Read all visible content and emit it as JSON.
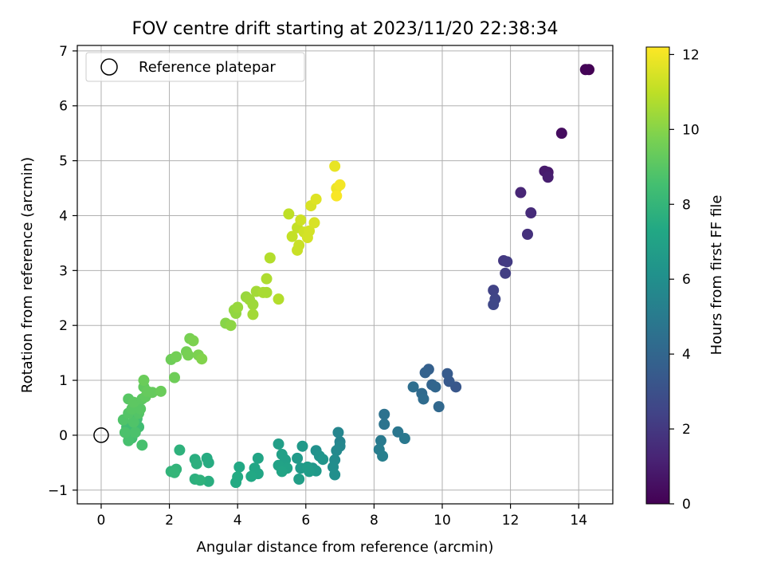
{
  "chart_data": {
    "type": "scatter",
    "title": "FOV centre drift starting at 2023/11/20 22:38:34",
    "xlabel": "Angular distance from reference (arcmin)",
    "ylabel": "Rotation from reference (arcmin)",
    "xlim": [
      -0.7,
      15.0
    ],
    "ylim": [
      -1.25,
      7.1
    ],
    "xticks": [
      0,
      2,
      4,
      6,
      8,
      10,
      12,
      14
    ],
    "yticks": [
      -1,
      0,
      1,
      2,
      3,
      4,
      5,
      6,
      7
    ],
    "grid": true,
    "legend": {
      "position": "top-left",
      "entries": [
        "Reference platepar"
      ]
    },
    "reference_point": {
      "x": 0,
      "y": 0
    },
    "colorbar": {
      "label": "Hours from first FF file",
      "range": [
        0,
        12.2
      ],
      "ticks": [
        0,
        2,
        4,
        6,
        8,
        10,
        12
      ],
      "colormap": "viridis"
    },
    "points": [
      {
        "x": 14.3,
        "y": 6.66,
        "c": 0.0
      },
      {
        "x": 14.2,
        "y": 6.66,
        "c": 0.1
      },
      {
        "x": 13.5,
        "y": 5.5,
        "c": 0.4
      },
      {
        "x": 13.1,
        "y": 4.79,
        "c": 0.8
      },
      {
        "x": 13.0,
        "y": 4.81,
        "c": 0.9
      },
      {
        "x": 13.1,
        "y": 4.7,
        "c": 1.0
      },
      {
        "x": 12.3,
        "y": 4.42,
        "c": 1.3
      },
      {
        "x": 12.6,
        "y": 4.05,
        "c": 1.5
      },
      {
        "x": 12.5,
        "y": 3.66,
        "c": 1.7
      },
      {
        "x": 11.8,
        "y": 3.18,
        "c": 2.0
      },
      {
        "x": 11.9,
        "y": 3.16,
        "c": 2.1
      },
      {
        "x": 11.85,
        "y": 2.95,
        "c": 2.2
      },
      {
        "x": 11.5,
        "y": 2.64,
        "c": 2.4
      },
      {
        "x": 11.55,
        "y": 2.48,
        "c": 2.5
      },
      {
        "x": 11.5,
        "y": 2.38,
        "c": 2.6
      },
      {
        "x": 10.4,
        "y": 0.88,
        "c": 3.3
      },
      {
        "x": 10.2,
        "y": 0.98,
        "c": 3.4
      },
      {
        "x": 10.15,
        "y": 1.12,
        "c": 3.5
      },
      {
        "x": 9.6,
        "y": 1.2,
        "c": 3.7
      },
      {
        "x": 9.5,
        "y": 1.14,
        "c": 3.8
      },
      {
        "x": 9.7,
        "y": 0.92,
        "c": 3.9
      },
      {
        "x": 9.8,
        "y": 0.88,
        "c": 4.0
      },
      {
        "x": 9.9,
        "y": 0.52,
        "c": 4.1
      },
      {
        "x": 9.4,
        "y": 0.76,
        "c": 4.2
      },
      {
        "x": 9.45,
        "y": 0.66,
        "c": 4.3
      },
      {
        "x": 9.15,
        "y": 0.88,
        "c": 4.4
      },
      {
        "x": 8.3,
        "y": 0.38,
        "c": 4.6
      },
      {
        "x": 8.3,
        "y": 0.2,
        "c": 4.7
      },
      {
        "x": 8.7,
        "y": 0.06,
        "c": 4.8
      },
      {
        "x": 8.9,
        "y": -0.06,
        "c": 4.9
      },
      {
        "x": 8.2,
        "y": -0.1,
        "c": 5.0
      },
      {
        "x": 8.15,
        "y": -0.26,
        "c": 5.1
      },
      {
        "x": 8.25,
        "y": -0.38,
        "c": 5.2
      },
      {
        "x": 7.0,
        "y": -0.12,
        "c": 5.4
      },
      {
        "x": 6.95,
        "y": 0.05,
        "c": 5.5
      },
      {
        "x": 7.0,
        "y": -0.2,
        "c": 5.6
      },
      {
        "x": 6.9,
        "y": -0.28,
        "c": 5.7
      },
      {
        "x": 6.85,
        "y": -0.45,
        "c": 5.8
      },
      {
        "x": 6.8,
        "y": -0.58,
        "c": 5.9
      },
      {
        "x": 6.85,
        "y": -0.72,
        "c": 6.0
      },
      {
        "x": 6.3,
        "y": -0.28,
        "c": 6.1
      },
      {
        "x": 6.4,
        "y": -0.38,
        "c": 6.2
      },
      {
        "x": 6.5,
        "y": -0.44,
        "c": 6.3
      },
      {
        "x": 6.2,
        "y": -0.6,
        "c": 6.4
      },
      {
        "x": 6.3,
        "y": -0.65,
        "c": 6.5
      },
      {
        "x": 5.9,
        "y": -0.2,
        "c": 6.5
      },
      {
        "x": 5.75,
        "y": -0.42,
        "c": 6.6
      },
      {
        "x": 5.85,
        "y": -0.6,
        "c": 6.6
      },
      {
        "x": 6.05,
        "y": -0.58,
        "c": 6.7
      },
      {
        "x": 6.1,
        "y": -0.66,
        "c": 6.7
      },
      {
        "x": 5.8,
        "y": -0.8,
        "c": 6.8
      },
      {
        "x": 5.2,
        "y": -0.16,
        "c": 6.8
      },
      {
        "x": 5.3,
        "y": -0.35,
        "c": 6.9
      },
      {
        "x": 5.4,
        "y": -0.45,
        "c": 6.9
      },
      {
        "x": 5.2,
        "y": -0.55,
        "c": 7.0
      },
      {
        "x": 5.45,
        "y": -0.6,
        "c": 7.0
      },
      {
        "x": 5.3,
        "y": -0.66,
        "c": 7.1
      },
      {
        "x": 4.6,
        "y": -0.42,
        "c": 7.1
      },
      {
        "x": 4.5,
        "y": -0.6,
        "c": 7.2
      },
      {
        "x": 4.6,
        "y": -0.7,
        "c": 7.2
      },
      {
        "x": 4.4,
        "y": -0.75,
        "c": 7.3
      },
      {
        "x": 4.05,
        "y": -0.58,
        "c": 7.3
      },
      {
        "x": 4.0,
        "y": -0.76,
        "c": 7.4
      },
      {
        "x": 3.95,
        "y": -0.86,
        "c": 7.4
      },
      {
        "x": 3.1,
        "y": -0.42,
        "c": 7.5
      },
      {
        "x": 3.15,
        "y": -0.5,
        "c": 7.5
      },
      {
        "x": 3.15,
        "y": -0.84,
        "c": 7.6
      },
      {
        "x": 2.75,
        "y": -0.44,
        "c": 7.6
      },
      {
        "x": 2.8,
        "y": -0.52,
        "c": 7.7
      },
      {
        "x": 2.75,
        "y": -0.8,
        "c": 7.7
      },
      {
        "x": 2.9,
        "y": -0.82,
        "c": 7.8
      },
      {
        "x": 2.3,
        "y": -0.27,
        "c": 7.8
      },
      {
        "x": 2.2,
        "y": -0.62,
        "c": 7.9
      },
      {
        "x": 2.05,
        "y": -0.66,
        "c": 7.9
      },
      {
        "x": 2.15,
        "y": -0.68,
        "c": 8.0
      },
      {
        "x": 0.85,
        "y": 0.0,
        "c": 8.2
      },
      {
        "x": 0.95,
        "y": 0.1,
        "c": 8.3
      },
      {
        "x": 1.1,
        "y": 0.15,
        "c": 8.4
      },
      {
        "x": 0.75,
        "y": 0.15,
        "c": 8.4
      },
      {
        "x": 1.05,
        "y": 0.3,
        "c": 8.5
      },
      {
        "x": 0.9,
        "y": -0.05,
        "c": 8.5
      },
      {
        "x": 1.2,
        "y": -0.18,
        "c": 8.6
      },
      {
        "x": 0.8,
        "y": -0.1,
        "c": 8.6
      },
      {
        "x": 1.0,
        "y": 0.05,
        "c": 8.7
      },
      {
        "x": 0.7,
        "y": 0.05,
        "c": 8.7
      },
      {
        "x": 0.65,
        "y": 0.28,
        "c": 8.8
      },
      {
        "x": 0.95,
        "y": 0.24,
        "c": 8.8
      },
      {
        "x": 0.8,
        "y": 0.4,
        "c": 8.9
      },
      {
        "x": 1.1,
        "y": 0.4,
        "c": 8.9
      },
      {
        "x": 0.9,
        "y": 0.48,
        "c": 9.0
      },
      {
        "x": 1.15,
        "y": 0.48,
        "c": 9.0
      },
      {
        "x": 0.8,
        "y": 0.66,
        "c": 9.0
      },
      {
        "x": 0.95,
        "y": 0.6,
        "c": 9.1
      },
      {
        "x": 1.2,
        "y": 0.66,
        "c": 9.1
      },
      {
        "x": 1.3,
        "y": 0.7,
        "c": 9.2
      },
      {
        "x": 1.25,
        "y": 0.88,
        "c": 9.2
      },
      {
        "x": 1.35,
        "y": 0.8,
        "c": 9.3
      },
      {
        "x": 1.5,
        "y": 0.78,
        "c": 9.3
      },
      {
        "x": 1.75,
        "y": 0.8,
        "c": 9.4
      },
      {
        "x": 1.25,
        "y": 1.0,
        "c": 9.4
      },
      {
        "x": 2.15,
        "y": 1.05,
        "c": 9.5
      },
      {
        "x": 2.05,
        "y": 1.38,
        "c": 9.5
      },
      {
        "x": 2.2,
        "y": 1.43,
        "c": 9.6
      },
      {
        "x": 2.5,
        "y": 1.52,
        "c": 9.6
      },
      {
        "x": 2.55,
        "y": 1.46,
        "c": 9.7
      },
      {
        "x": 2.6,
        "y": 1.76,
        "c": 9.7
      },
      {
        "x": 2.7,
        "y": 1.72,
        "c": 9.8
      },
      {
        "x": 2.85,
        "y": 1.46,
        "c": 9.8
      },
      {
        "x": 2.95,
        "y": 1.39,
        "c": 9.9
      },
      {
        "x": 3.65,
        "y": 2.04,
        "c": 10.0
      },
      {
        "x": 3.8,
        "y": 2.0,
        "c": 10.1
      },
      {
        "x": 3.9,
        "y": 2.28,
        "c": 10.2
      },
      {
        "x": 3.95,
        "y": 2.22,
        "c": 10.2
      },
      {
        "x": 4.0,
        "y": 2.33,
        "c": 10.3
      },
      {
        "x": 4.25,
        "y": 2.52,
        "c": 10.3
      },
      {
        "x": 4.35,
        "y": 2.47,
        "c": 10.4
      },
      {
        "x": 4.45,
        "y": 2.38,
        "c": 10.4
      },
      {
        "x": 4.55,
        "y": 2.62,
        "c": 10.5
      },
      {
        "x": 4.45,
        "y": 2.2,
        "c": 10.5
      },
      {
        "x": 4.75,
        "y": 2.6,
        "c": 10.6
      },
      {
        "x": 4.85,
        "y": 2.6,
        "c": 10.6
      },
      {
        "x": 4.85,
        "y": 2.85,
        "c": 10.7
      },
      {
        "x": 4.95,
        "y": 3.23,
        "c": 10.8
      },
      {
        "x": 5.2,
        "y": 2.48,
        "c": 10.8
      },
      {
        "x": 5.5,
        "y": 4.03,
        "c": 11.0
      },
      {
        "x": 5.6,
        "y": 3.62,
        "c": 11.1
      },
      {
        "x": 5.75,
        "y": 3.78,
        "c": 11.1
      },
      {
        "x": 5.75,
        "y": 3.37,
        "c": 11.2
      },
      {
        "x": 5.8,
        "y": 3.46,
        "c": 11.2
      },
      {
        "x": 5.85,
        "y": 3.92,
        "c": 11.3
      },
      {
        "x": 5.95,
        "y": 3.7,
        "c": 11.3
      },
      {
        "x": 6.05,
        "y": 3.6,
        "c": 11.4
      },
      {
        "x": 6.1,
        "y": 3.72,
        "c": 11.4
      },
      {
        "x": 6.25,
        "y": 3.87,
        "c": 11.5
      },
      {
        "x": 6.15,
        "y": 4.18,
        "c": 11.5
      },
      {
        "x": 6.3,
        "y": 4.3,
        "c": 11.6
      },
      {
        "x": 6.85,
        "y": 4.9,
        "c": 11.8
      },
      {
        "x": 6.9,
        "y": 4.5,
        "c": 11.9
      },
      {
        "x": 7.0,
        "y": 4.56,
        "c": 12.0
      },
      {
        "x": 6.9,
        "y": 4.36,
        "c": 12.1
      }
    ]
  }
}
